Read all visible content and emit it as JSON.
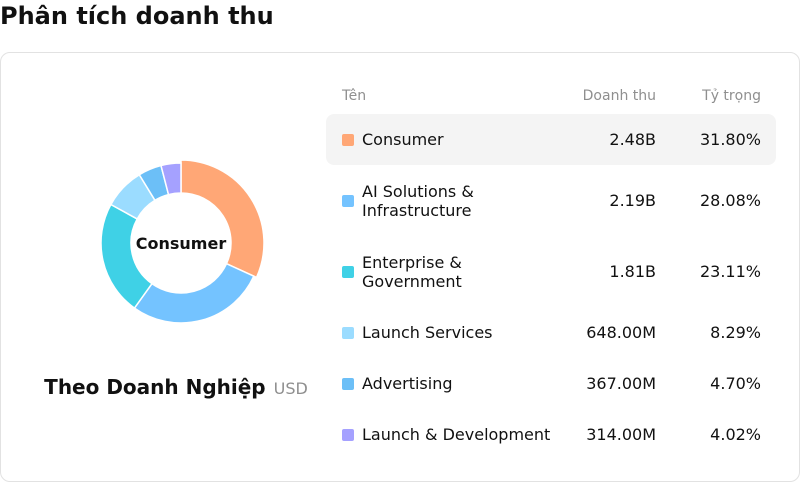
{
  "page_title": "Phân tích doanh thu",
  "chart": {
    "center_label": "Consumer",
    "group_title": "Theo Doanh Nghiệp",
    "unit": "USD"
  },
  "table": {
    "headers": {
      "name": "Tên",
      "revenue": "Doanh thu",
      "share": "Tỷ trọng"
    },
    "rows": [
      {
        "name": "Consumer",
        "revenue": "2.48B",
        "share": "31.80%",
        "color": "#ffa776",
        "selected": true
      },
      {
        "name": "AI Solutions & Infrastructure",
        "revenue": "2.19B",
        "share": "28.08%",
        "color": "#74c3ff"
      },
      {
        "name": "Enterprise & Government",
        "revenue": "1.81B",
        "share": "23.11%",
        "color": "#3fd1e6"
      },
      {
        "name": "Launch Services",
        "revenue": "648.00M",
        "share": "8.29%",
        "color": "#9bdcff"
      },
      {
        "name": "Advertising",
        "revenue": "367.00M",
        "share": "4.70%",
        "color": "#6cbff7"
      },
      {
        "name": "Launch & Development",
        "revenue": "314.00M",
        "share": "4.02%",
        "color": "#a5a1ff"
      }
    ]
  },
  "chart_data": {
    "type": "pie",
    "variant": "donut",
    "categories": [
      "Consumer",
      "AI Solutions & Infrastructure",
      "Enterprise & Government",
      "Launch Services",
      "Advertising",
      "Launch & Development"
    ],
    "values": [
      31.8,
      28.08,
      23.11,
      8.29,
      4.7,
      4.02
    ],
    "colors": [
      "#ffa776",
      "#74c3ff",
      "#3fd1e6",
      "#9bdcff",
      "#6cbff7",
      "#a5a1ff"
    ],
    "highlighted": "Consumer"
  }
}
